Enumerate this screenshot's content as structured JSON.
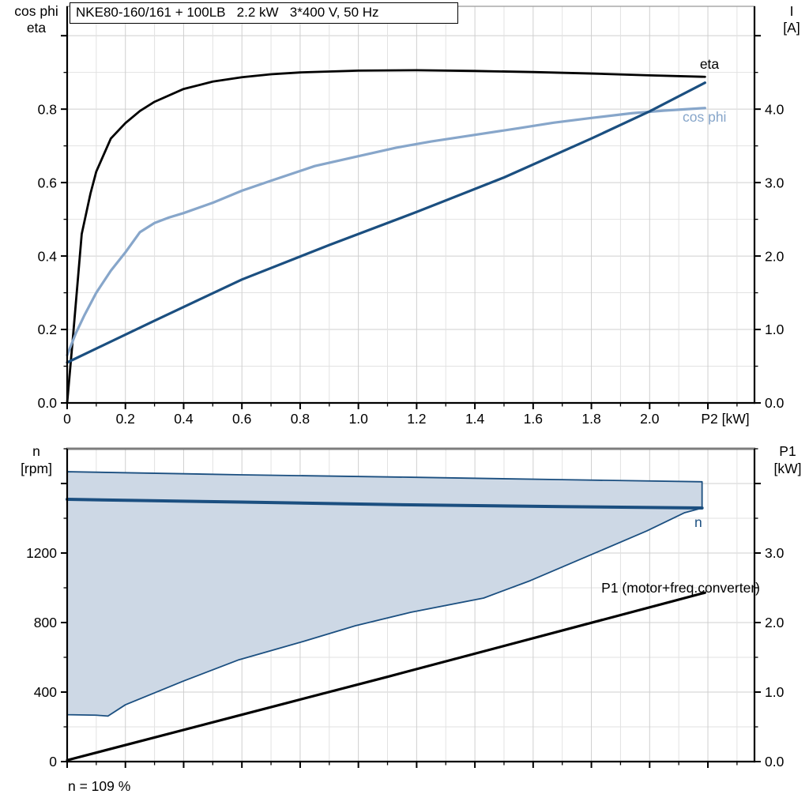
{
  "title": "NKE80-160/161 + 100LB   2.2 kW   3*400 V, 50 Hz",
  "footnote": "n = 109 %",
  "colors": {
    "curve_black": "#000000",
    "curve_dark_blue": "#1b4f80",
    "curve_light_blue": "#87a6ca",
    "band_fill": "#cdd8e5",
    "band_stroke": "#1b4f80",
    "grid_major": "#cfcfcf",
    "grid_minor": "#e2e2e2",
    "frame_gray_top": "#999999",
    "frame_gray_bottom": "#7d7d7d",
    "axis_black": "#000000"
  },
  "labels": {
    "y_left_top_line1": "cos phi",
    "y_left_top_line2": "eta",
    "y_right_top_line1": "I",
    "y_right_top_line2": "[A]",
    "x_axis": "P2 [kW]",
    "y_left_bottom_line1": "n",
    "y_left_bottom_line2": "[rpm]",
    "y_right_bottom_line1": "P1",
    "y_right_bottom_line2": "[kW]",
    "curve_eta": "eta",
    "curve_cosphi": "cos phi",
    "curve_n": "n",
    "curve_p1": "P1 (motor+freq.converter)"
  },
  "chart_data": [
    {
      "type": "line",
      "title": "NKE80-160/161 + 100LB   2.2 kW   3*400 V, 50 Hz",
      "position": "top",
      "x_axis": {
        "label": "P2 [kW]",
        "min": 0,
        "max": 2.36,
        "minor_step": 0.1,
        "major_step": 0.2,
        "labeled_ticks": [
          {
            "v": 0,
            "t": "0"
          },
          {
            "v": 0.2,
            "t": "0.2"
          },
          {
            "v": 0.4,
            "t": "0.4"
          },
          {
            "v": 0.6,
            "t": "0.6"
          },
          {
            "v": 0.8,
            "t": "0.8"
          },
          {
            "v": 1.0,
            "t": "1.0"
          },
          {
            "v": 1.2,
            "t": "1.2"
          },
          {
            "v": 1.4,
            "t": "1.4"
          },
          {
            "v": 1.6,
            "t": "1.6"
          },
          {
            "v": 1.8,
            "t": "1.8"
          },
          {
            "v": 2.0,
            "t": "2.0"
          }
        ]
      },
      "y_left": {
        "label": "cos phi / eta",
        "min": 0,
        "max": 1.08,
        "minor_step": 0.1,
        "major_step": 0.2,
        "labeled_ticks": [
          {
            "v": 0,
            "t": "0.0"
          },
          {
            "v": 0.2,
            "t": "0.2"
          },
          {
            "v": 0.4,
            "t": "0.4"
          },
          {
            "v": 0.6,
            "t": "0.6"
          },
          {
            "v": 0.8,
            "t": "0.8"
          }
        ]
      },
      "y_right": {
        "label": "I [A]",
        "min": 0,
        "max": 5.4,
        "minor_step": 0.5,
        "major_step": 1.0,
        "labeled_ticks": [
          {
            "v": 0,
            "t": "0.0"
          },
          {
            "v": 1,
            "t": "1.0"
          },
          {
            "v": 2,
            "t": "2.0"
          },
          {
            "v": 3,
            "t": "3.0"
          },
          {
            "v": 4,
            "t": "4.0"
          }
        ]
      },
      "grid": true,
      "series": [
        {
          "name": "eta",
          "axis": "left",
          "color": "curve_black",
          "width": 2.8,
          "points": [
            [
              0,
              0
            ],
            [
              0.02,
              0.18
            ],
            [
              0.05,
              0.46
            ],
            [
              0.08,
              0.57
            ],
            [
              0.1,
              0.63
            ],
            [
              0.15,
              0.72
            ],
            [
              0.2,
              0.762
            ],
            [
              0.25,
              0.795
            ],
            [
              0.3,
              0.82
            ],
            [
              0.4,
              0.855
            ],
            [
              0.5,
              0.875
            ],
            [
              0.6,
              0.887
            ],
            [
              0.7,
              0.895
            ],
            [
              0.8,
              0.9
            ],
            [
              1.0,
              0.905
            ],
            [
              1.2,
              0.906
            ],
            [
              1.4,
              0.904
            ],
            [
              1.6,
              0.901
            ],
            [
              1.8,
              0.897
            ],
            [
              2.0,
              0.892
            ],
            [
              2.19,
              0.888
            ]
          ]
        },
        {
          "name": "cos phi",
          "axis": "left",
          "color": "curve_light_blue",
          "width": 3.2,
          "points": [
            [
              0,
              0.13
            ],
            [
              0.03,
              0.19
            ],
            [
              0.06,
              0.24
            ],
            [
              0.1,
              0.3
            ],
            [
              0.15,
              0.36
            ],
            [
              0.2,
              0.41
            ],
            [
              0.25,
              0.465
            ],
            [
              0.3,
              0.49
            ],
            [
              0.35,
              0.505
            ],
            [
              0.4,
              0.517
            ],
            [
              0.5,
              0.545
            ],
            [
              0.6,
              0.578
            ],
            [
              0.7,
              0.605
            ],
            [
              0.85,
              0.645
            ],
            [
              1.0,
              0.672
            ],
            [
              1.13,
              0.695
            ],
            [
              1.25,
              0.712
            ],
            [
              1.4,
              0.73
            ],
            [
              1.55,
              0.748
            ],
            [
              1.67,
              0.763
            ],
            [
              1.8,
              0.776
            ],
            [
              1.94,
              0.789
            ],
            [
              2.05,
              0.796
            ],
            [
              2.19,
              0.803
            ]
          ]
        },
        {
          "name": "I",
          "axis": "right",
          "color": "curve_dark_blue",
          "width": 3.2,
          "points": [
            [
              0,
              0.55
            ],
            [
              0.3,
              1.12
            ],
            [
              0.6,
              1.68
            ],
            [
              0.9,
              2.15
            ],
            [
              1.2,
              2.6
            ],
            [
              1.5,
              3.07
            ],
            [
              1.8,
              3.6
            ],
            [
              2.0,
              3.97
            ],
            [
              2.19,
              4.36
            ]
          ]
        }
      ]
    },
    {
      "type": "line",
      "position": "bottom",
      "x_axis": {
        "label": "",
        "min": 0,
        "max": 2.36,
        "minor_step": 0.1,
        "major_step": 0.2,
        "labeled_ticks": []
      },
      "y_left": {
        "label": "n [rpm]",
        "min": 0,
        "max": 1800,
        "minor_step": 200,
        "major_step": 400,
        "labeled_ticks": [
          {
            "v": 0,
            "t": "0"
          },
          {
            "v": 400,
            "t": "400"
          },
          {
            "v": 800,
            "t": "800"
          },
          {
            "v": 1200,
            "t": "1200"
          }
        ]
      },
      "y_right": {
        "label": "P1 [kW]",
        "min": 0,
        "max": 4.5,
        "minor_step": 0.5,
        "major_step": 1.0,
        "labeled_ticks": [
          {
            "v": 0,
            "t": "0.0"
          },
          {
            "v": 1,
            "t": "1.0"
          },
          {
            "v": 2,
            "t": "2.0"
          },
          {
            "v": 3,
            "t": "3.0"
          }
        ]
      },
      "grid": true,
      "band": {
        "name": "speed-range",
        "axis": "left",
        "fill": "band_fill",
        "stroke": "band_stroke",
        "stroke_width": 1.8,
        "upper": [
          [
            0,
            1668
          ],
          [
            0.6,
            1650
          ],
          [
            1.18,
            1636
          ],
          [
            1.7,
            1622
          ],
          [
            2.18,
            1610
          ]
        ],
        "lower": [
          [
            0,
            270
          ],
          [
            0.1,
            267
          ],
          [
            0.14,
            262
          ],
          [
            0.2,
            327
          ],
          [
            0.4,
            464
          ],
          [
            0.59,
            586
          ],
          [
            0.81,
            691
          ],
          [
            0.99,
            782
          ],
          [
            1.18,
            859
          ],
          [
            1.43,
            941
          ],
          [
            1.59,
            1041
          ],
          [
            1.8,
            1191
          ],
          [
            1.99,
            1327
          ],
          [
            2.12,
            1432
          ],
          [
            2.18,
            1459
          ]
        ]
      },
      "series": [
        {
          "name": "n",
          "axis": "left",
          "color": "curve_dark_blue",
          "width": 4,
          "points": [
            [
              0,
              1509
            ],
            [
              0.6,
              1493
            ],
            [
              1.18,
              1477
            ],
            [
              1.7,
              1467
            ],
            [
              2.18,
              1459
            ]
          ]
        },
        {
          "name": "P1 (motor+freq.converter)",
          "axis": "right",
          "color": "curve_black",
          "width": 3.2,
          "points": [
            [
              0,
              0.02
            ],
            [
              0.55,
              0.62
            ],
            [
              1.1,
              1.22
            ],
            [
              1.65,
              1.83
            ],
            [
              2.19,
              2.43
            ]
          ]
        }
      ]
    }
  ]
}
